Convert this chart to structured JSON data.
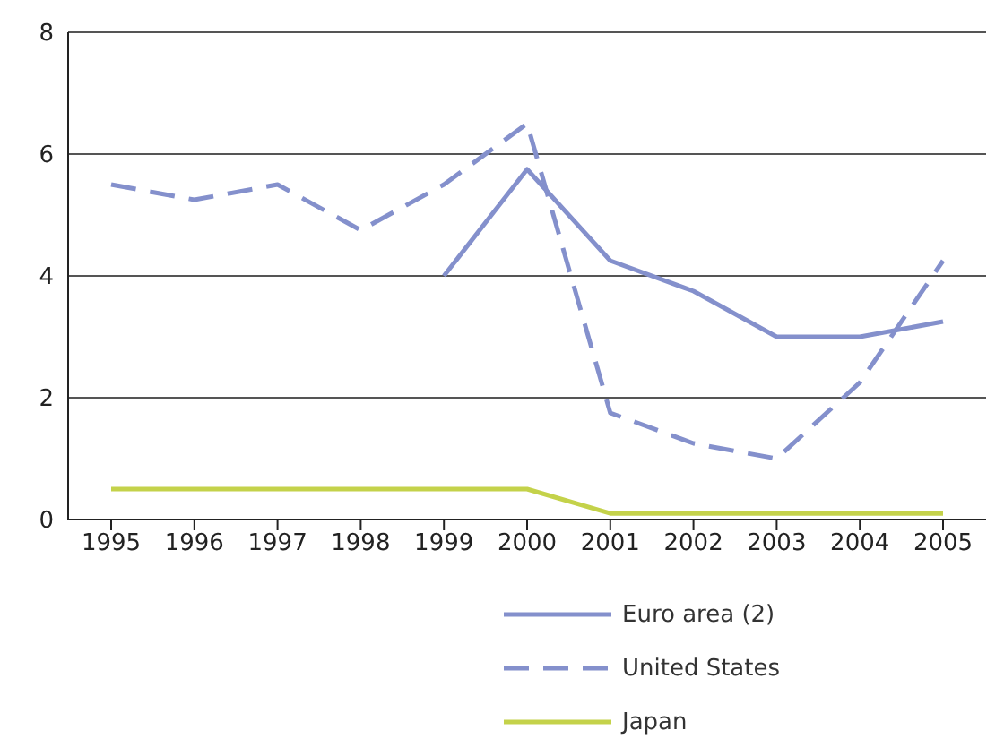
{
  "chart_data": {
    "type": "line",
    "categories": [
      "1995",
      "1996",
      "1997",
      "1998",
      "1999",
      "2000",
      "2001",
      "2002",
      "2003",
      "2004",
      "2005"
    ],
    "series": [
      {
        "name": "Euro area (2)",
        "color": "#8490cc",
        "line_style": "solid",
        "values": [
          null,
          null,
          null,
          null,
          4.0,
          5.75,
          4.25,
          3.75,
          3.0,
          3.0,
          3.25
        ]
      },
      {
        "name": "United States",
        "color": "#8490cc",
        "line_style": "dashed",
        "values": [
          5.5,
          5.25,
          5.5,
          4.75,
          5.5,
          6.5,
          1.75,
          1.25,
          1.0,
          2.25,
          4.25
        ]
      },
      {
        "name": "Japan",
        "color": "#c4d24a",
        "line_style": "solid",
        "values": [
          0.5,
          0.5,
          0.5,
          0.5,
          0.5,
          0.5,
          0.1,
          0.1,
          0.1,
          0.1,
          0.1
        ]
      }
    ],
    "ylim": [
      0,
      8
    ],
    "yticks": [
      0,
      2,
      4,
      6,
      8
    ],
    "grid": "y",
    "legend": "bottom",
    "marker": "none"
  }
}
